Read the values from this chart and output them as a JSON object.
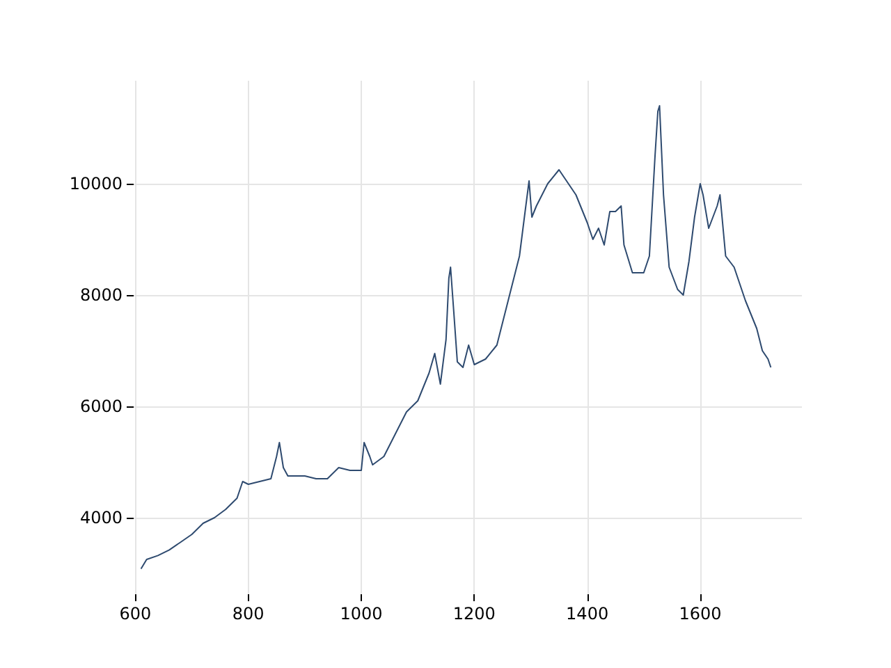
{
  "chart_data": {
    "type": "line",
    "x": [
      610,
      620,
      640,
      660,
      680,
      700,
      720,
      740,
      760,
      780,
      790,
      800,
      820,
      840,
      850,
      855,
      862,
      870,
      900,
      920,
      940,
      960,
      980,
      1000,
      1005,
      1015,
      1020,
      1040,
      1060,
      1080,
      1100,
      1120,
      1130,
      1140,
      1150,
      1155,
      1158,
      1163,
      1170,
      1180,
      1190,
      1200,
      1220,
      1240,
      1260,
      1280,
      1290,
      1297,
      1302,
      1310,
      1330,
      1350,
      1360,
      1380,
      1400,
      1410,
      1420,
      1430,
      1440,
      1450,
      1460,
      1465,
      1480,
      1500,
      1510,
      1520,
      1525,
      1528,
      1535,
      1545,
      1560,
      1570,
      1580,
      1590,
      1600,
      1605,
      1615,
      1630,
      1635,
      1645,
      1660,
      1680,
      1700,
      1710,
      1720,
      1725
    ],
    "series": [
      {
        "color": "#2e4a6f",
        "values": [
          3080,
          3250,
          3320,
          3420,
          3560,
          3700,
          3900,
          4000,
          4150,
          4350,
          4650,
          4600,
          4650,
          4700,
          5100,
          5350,
          4900,
          4750,
          4750,
          4700,
          4700,
          4900,
          4850,
          4850,
          5350,
          5100,
          4950,
          5100,
          5500,
          5900,
          6100,
          6600,
          6950,
          6400,
          7200,
          8300,
          8500,
          7800,
          6800,
          6700,
          7100,
          6750,
          6850,
          7100,
          7900,
          8700,
          9500,
          10050,
          9400,
          9600,
          10000,
          10250,
          10100,
          9800,
          9300,
          9000,
          9200,
          8900,
          9500,
          9500,
          9600,
          8900,
          8400,
          8400,
          8700,
          10500,
          11300,
          11400,
          9800,
          8500,
          8100,
          8000,
          8600,
          9400,
          10000,
          9800,
          9200,
          9600,
          9800,
          8700,
          8500,
          7900,
          7400,
          7000,
          6850,
          6700
        ]
      }
    ],
    "xlim": [
      597,
      1780
    ],
    "ylim": [
      2625,
      11850
    ],
    "xticks": [
      600,
      800,
      1000,
      1200,
      1400,
      1600
    ],
    "yticks": [
      4000,
      6000,
      8000,
      10000
    ],
    "grid": true,
    "marker": "none",
    "line_style": "solid"
  }
}
